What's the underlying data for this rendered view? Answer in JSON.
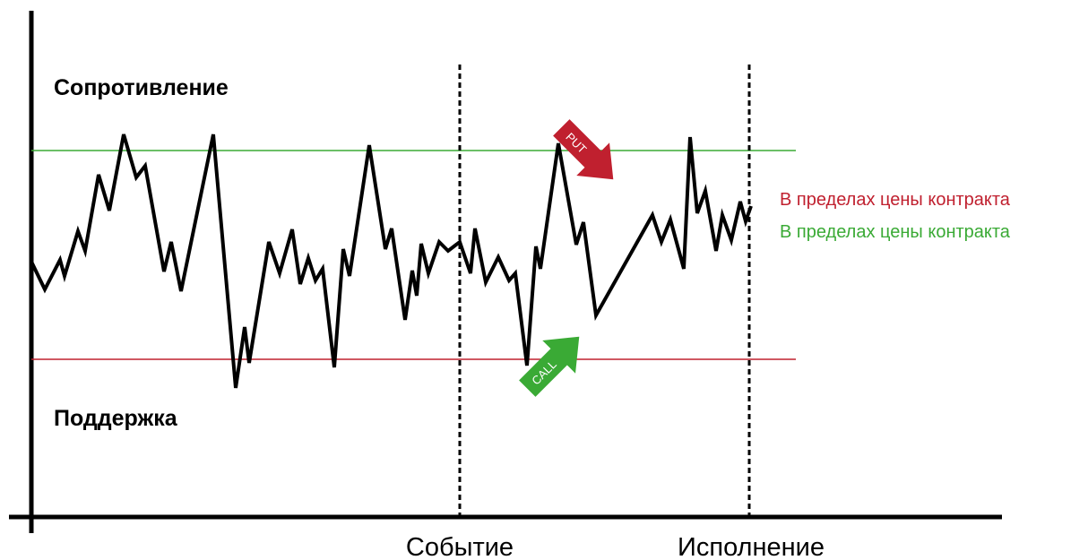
{
  "labels": {
    "resistance": "Сопротивление",
    "support": "Поддержка"
  },
  "x_axis": {
    "event": "Событие",
    "expiry": "Исполнение"
  },
  "legend": [
    "В пределах цены контракта",
    "В пределах цены контракта"
  ],
  "arrows": {
    "put": "PUT",
    "call": "CALL"
  }
}
